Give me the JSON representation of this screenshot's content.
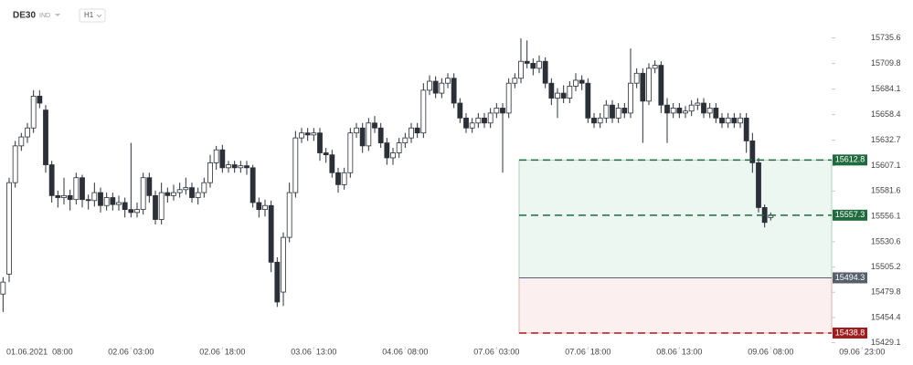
{
  "chart_data": {
    "type": "candlestick",
    "symbol": "DE30",
    "instrument_type": "IND",
    "timeframe": "H1",
    "open": [
      15478,
      15498,
      15590,
      15627,
      15636,
      15645,
      15677,
      15663,
      15608,
      15577,
      15575,
      15577,
      15573,
      15595,
      15573,
      15572,
      15580,
      15567,
      15575,
      15568,
      15570,
      15563,
      15560,
      15563,
      15595,
      15577,
      15553,
      15580,
      15577,
      15580,
      15583,
      15585,
      15575,
      15580,
      15590,
      15610,
      15623,
      15605,
      15608,
      15605,
      15607,
      15605,
      15570,
      15563,
      15567,
      15510,
      15480,
      15535,
      15580,
      15635,
      15640,
      15638,
      15640,
      15620,
      15618,
      15600,
      15588,
      15600,
      15640,
      15645,
      15627,
      15650,
      15645,
      15630,
      15615,
      15620,
      15630,
      15635,
      15645,
      15640,
      15683,
      15692,
      15680,
      15690,
      15695,
      15670,
      15655,
      15645,
      15650,
      15655,
      15650,
      15660,
      15665,
      15660,
      15690,
      15695,
      15712,
      15710,
      15705,
      15712,
      15690,
      15675,
      15680,
      15675,
      15687,
      15693,
      15690,
      15655,
      15650,
      15655,
      15668,
      15655,
      15665,
      15660,
      15690,
      15700,
      15672,
      15705,
      15708,
      15668,
      15660,
      15665,
      15660,
      15662,
      15668,
      15670,
      15660,
      15665,
      15655,
      15650,
      15655,
      15650,
      15655,
      15632,
      15610,
      15565,
      15555
    ],
    "high": [
      15495,
      15595,
      15632,
      15640,
      15650,
      15683,
      15683,
      15668,
      15612,
      15582,
      15595,
      15583,
      15600,
      15598,
      15578,
      15590,
      15585,
      15580,
      15580,
      15577,
      15575,
      15630,
      15570,
      15600,
      15600,
      15582,
      15590,
      15585,
      15588,
      15590,
      15595,
      15590,
      15585,
      15595,
      15618,
      15627,
      15628,
      15612,
      15612,
      15612,
      15612,
      15608,
      15575,
      15573,
      15572,
      15515,
      15540,
      15590,
      15642,
      15645,
      15645,
      15645,
      15645,
      15625,
      15623,
      15605,
      15605,
      15645,
      15650,
      15650,
      15655,
      15657,
      15650,
      15635,
      15625,
      15635,
      15640,
      15650,
      15650,
      15690,
      15698,
      15697,
      15695,
      15700,
      15700,
      15675,
      15660,
      15655,
      15660,
      15660,
      15665,
      15670,
      15670,
      15695,
      15700,
      15735,
      15733,
      15715,
      15718,
      15716,
      15695,
      15685,
      15688,
      15692,
      15700,
      15698,
      15695,
      15660,
      15660,
      15673,
      15673,
      15670,
      15670,
      15725,
      15705,
      15705,
      15710,
      15713,
      15712,
      15675,
      15670,
      15670,
      15667,
      15673,
      15675,
      15675,
      15670,
      15670,
      15660,
      15660,
      15660,
      15660,
      15660,
      15640,
      15615,
      15568,
      15560
    ],
    "low": [
      15460,
      15490,
      15585,
      15622,
      15630,
      15640,
      15665,
      15600,
      15570,
      15565,
      15568,
      15562,
      15568,
      15565,
      15563,
      15566,
      15560,
      15562,
      15562,
      15562,
      15555,
      15555,
      15555,
      15558,
      15570,
      15548,
      15548,
      15570,
      15572,
      15575,
      15578,
      15570,
      15568,
      15575,
      15585,
      15603,
      15600,
      15600,
      15600,
      15600,
      15598,
      15565,
      15555,
      15556,
      15500,
      15465,
      15466,
      15530,
      15575,
      15630,
      15632,
      15632,
      15612,
      15610,
      15595,
      15580,
      15583,
      15595,
      15635,
      15620,
      15622,
      15640,
      15625,
      15608,
      15608,
      15615,
      15625,
      15630,
      15635,
      15635,
      15678,
      15675,
      15675,
      15685,
      15665,
      15650,
      15640,
      15640,
      15645,
      15645,
      15645,
      15655,
      15600,
      15655,
      15685,
      15690,
      15705,
      15698,
      15700,
      15685,
      15668,
      15655,
      15670,
      15670,
      15682,
      15683,
      15650,
      15645,
      15645,
      15650,
      15650,
      15650,
      15655,
      15655,
      15685,
      15630,
      15668,
      15700,
      15660,
      15630,
      15655,
      15655,
      15655,
      15657,
      15663,
      15655,
      15655,
      15650,
      15645,
      15645,
      15645,
      15645,
      15620,
      15600,
      15560,
      15545,
      15552
    ],
    "close": [
      15490,
      15590,
      15627,
      15636,
      15645,
      15677,
      15670,
      15608,
      15577,
      15575,
      15577,
      15573,
      15595,
      15573,
      15572,
      15580,
      15567,
      15575,
      15568,
      15570,
      15563,
      15560,
      15563,
      15595,
      15577,
      15553,
      15580,
      15577,
      15580,
      15583,
      15585,
      15575,
      15580,
      15590,
      15610,
      15623,
      15605,
      15608,
      15605,
      15607,
      15605,
      15570,
      15563,
      15567,
      15510,
      15470,
      15535,
      15580,
      15635,
      15640,
      15638,
      15640,
      15620,
      15618,
      15600,
      15588,
      15600,
      15640,
      15645,
      15627,
      15650,
      15645,
      15630,
      15615,
      15620,
      15630,
      15635,
      15645,
      15640,
      15683,
      15692,
      15680,
      15690,
      15695,
      15670,
      15655,
      15645,
      15650,
      15655,
      15650,
      15660,
      15665,
      15660,
      15690,
      15695,
      15712,
      15710,
      15705,
      15712,
      15690,
      15675,
      15680,
      15675,
      15687,
      15693,
      15690,
      15655,
      15650,
      15655,
      15668,
      15655,
      15665,
      15660,
      15690,
      15700,
      15672,
      15705,
      15708,
      15668,
      15660,
      15665,
      15660,
      15662,
      15668,
      15670,
      15660,
      15665,
      15655,
      15650,
      15655,
      15650,
      15655,
      15632,
      15610,
      15565,
      15550,
      15557.3
    ],
    "up_color": "#ffffff",
    "down_color": "#2b3038",
    "wick_color": "#2b3038",
    "xlim": [
      -0.5,
      136
    ],
    "xticks": [
      {
        "value": 6,
        "label": "01.06.2021  08:00"
      },
      {
        "value": 21,
        "label": "02.06  03:00"
      },
      {
        "value": 36,
        "label": "02.06  18:00"
      },
      {
        "value": 51,
        "label": "03.06  13:00"
      },
      {
        "value": 66,
        "label": "04.06  08:00"
      },
      {
        "value": 81,
        "label": "07.06  03:00"
      },
      {
        "value": 96,
        "label": "07.06  18:00"
      },
      {
        "value": 111,
        "label": "08.06  13:00"
      },
      {
        "value": 126,
        "label": "09.06  08:00"
      },
      {
        "value": 141,
        "label": "09.06  23:00"
      }
    ],
    "ylim": [
      15425,
      15748
    ],
    "yticks": [
      15735.6,
      15709.8,
      15684.1,
      15658.4,
      15632.7,
      15607.1,
      15581.6,
      15556.1,
      15530.6,
      15505.2,
      15479.8,
      15454.4,
      15429.1
    ],
    "levels": [
      {
        "value": 15612.8,
        "color": "#1f6b3d",
        "dashed": true
      },
      {
        "value": 15557.3,
        "color": "#1f6b3d",
        "dashed": true
      },
      {
        "value": 15494.3,
        "color": "#55606b",
        "dashed": false
      },
      {
        "value": 15438.8,
        "color": "#a01c1c",
        "dashed": true
      }
    ]
  }
}
